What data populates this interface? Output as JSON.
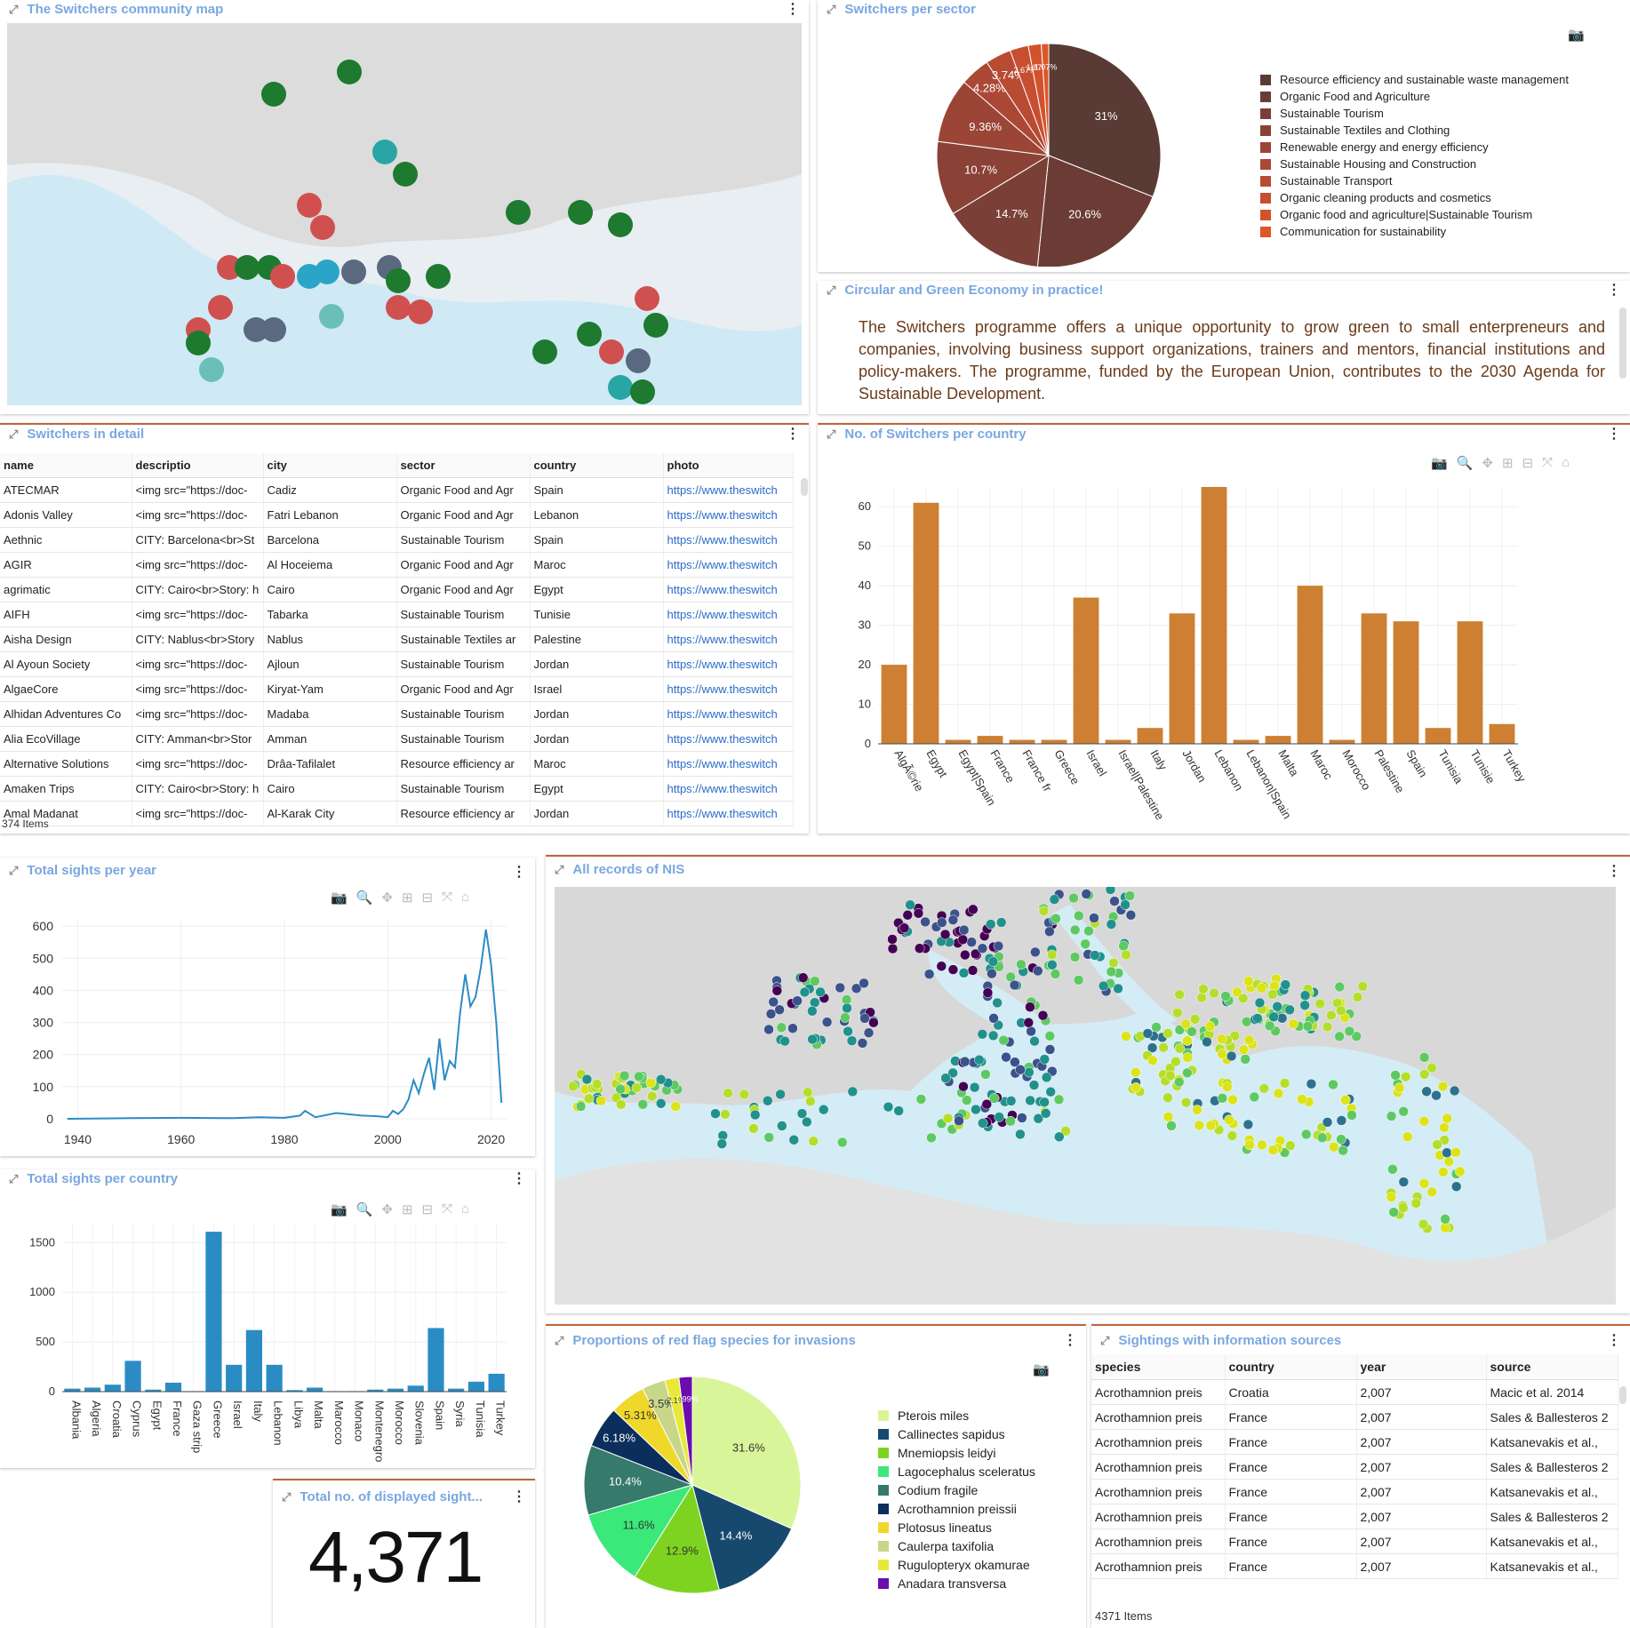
{
  "community_map": {
    "title": "The Switchers community map"
  },
  "sector_pie": {
    "title": "Switchers per sector",
    "slice_labels": [
      "31%",
      "20.6%",
      "14.7%",
      "10.7%",
      "9.36%",
      "4.28%",
      "3.74%",
      "2.67%",
      "1.87%",
      "1.07%"
    ],
    "legend": [
      "Resource efficiency and sustainable waste management",
      "Organic Food and Agriculture",
      "Sustainable Tourism",
      "Sustainable Textiles and Clothing",
      "Renewable energy and energy efficiency",
      "Sustainable Housing and Construction",
      "Sustainable Transport",
      "Organic cleaning products and cosmetics",
      "Organic food and agriculture|Sustainable Tourism",
      "Communication for sustainability"
    ],
    "colors": [
      "#5a3a34",
      "#6b3c35",
      "#7a3f36",
      "#8a4236",
      "#9a4536",
      "#aa4835",
      "#b94b33",
      "#c74e30",
      "#d3522c",
      "#de5628"
    ]
  },
  "circular_text": {
    "title": "Circular and Green Economy in practice!",
    "body": "The Switchers programme offers a unique opportunity to grow green to small enterpreneurs and companies, involving business support organizations, trainers and mentors, financial institutions and policy-makers. The programme, funded by the European Union, contributes to the 2030 Agenda for Sustainable Development."
  },
  "switchers_detail": {
    "title": "Switchers in detail",
    "columns": [
      "name",
      "descriptio",
      "city",
      "sector",
      "country",
      "photo"
    ],
    "rows": [
      [
        "ATECMAR",
        "<img src=\"https://doc-",
        "Cadiz",
        "Organic Food and Agr",
        "Spain",
        "https://www.theswitch"
      ],
      [
        "Adonis Valley",
        "<img src=\"https://doc-",
        "Fatri Lebanon",
        "Organic Food and Agr",
        "Lebanon",
        "https://www.theswitch"
      ],
      [
        "Aethnic",
        "CITY: Barcelona<br>St",
        "Barcelona",
        "Sustainable Tourism",
        "Spain",
        "https://www.theswitch"
      ],
      [
        "AGIR",
        "<img src=\"https://doc-",
        "Al Hoceiema",
        "Organic Food and Agr",
        "Maroc",
        "https://www.theswitch"
      ],
      [
        "agrimatic",
        "CITY: Cairo<br>Story: h",
        "Cairo",
        "Organic Food and Agr",
        "Egypt",
        "https://www.theswitch"
      ],
      [
        "AIFH",
        "<img src=\"https://doc-",
        "Tabarka",
        "Sustainable Tourism",
        "Tunisie",
        "https://www.theswitch"
      ],
      [
        "Aisha Design",
        "CITY: Nablus<br>Story",
        "Nablus",
        "Sustainable Textiles ar",
        "Palestine",
        "https://www.theswitch"
      ],
      [
        "Al Ayoun Society",
        "<img src=\"https://doc-",
        "Ajloun",
        "Sustainable Tourism",
        "Jordan",
        "https://www.theswitch"
      ],
      [
        "AlgaeCore",
        "<img src=\"https://doc-",
        "Kiryat-Yam",
        "Organic Food and Agr",
        "Israel",
        "https://www.theswitch"
      ],
      [
        "Alhidan Adventures Co",
        "<img src=\"https://doc-",
        "Madaba",
        "Sustainable Tourism",
        "Jordan",
        "https://www.theswitch"
      ],
      [
        "Alia EcoVillage",
        "CITY: Amman<br>Stor",
        "Amman",
        "Sustainable Tourism",
        "Jordan",
        "https://www.theswitch"
      ],
      [
        "Alternative Solutions",
        "<img src=\"https://doc-",
        "Drâa-Tafilalet",
        "Resource efficiency ar",
        "Maroc",
        "https://www.theswitch"
      ],
      [
        "Amaken Trips",
        "CITY: Cairo<br>Story: h",
        "Cairo",
        "Sustainable Tourism",
        "Egypt",
        "https://www.theswitch"
      ],
      [
        "Amal Madanat",
        "<img src=\"https://doc-",
        "Al-Karak City",
        "Resource efficiency ar",
        "Jordan",
        "https://www.theswitch"
      ]
    ],
    "item_count": "374 Items"
  },
  "country_bar": {
    "title": "No. of Switchers per country",
    "accent": "#cd7f32"
  },
  "sights_year": {
    "title": "Total sights per year"
  },
  "sights_country": {
    "title": "Total sights per country"
  },
  "nis_map": {
    "title": "All records of NIS"
  },
  "red_flag_pie": {
    "title": "Proportions of red flag species for invasions",
    "slice_labels": [
      "31.6%",
      "14.4%",
      "12.9%",
      "11.6%",
      "10.4%",
      "6.18%",
      "5.31%",
      "3.5%",
      "2.1%",
      "1.99%"
    ],
    "legend": [
      "Pterois miles",
      "Callinectes sapidus",
      "Mnemiopsis leidyi",
      "Lagocephalus sceleratus",
      "Codium fragile",
      "Acrothamnion preissii",
      "Plotosus lineatus",
      "Caulerpa taxifolia",
      "Rugulopteryx okamurae",
      "Anadara transversa"
    ],
    "colors": [
      "#d9f59a",
      "#17496e",
      "#7ed321",
      "#3be87a",
      "#357a6c",
      "#0b2e5c",
      "#f0d82a",
      "#c8d68a",
      "#e8e83a",
      "#6a0dad"
    ]
  },
  "sightings_table": {
    "title": "Sightings with information sources",
    "columns": [
      "species",
      "country",
      "year",
      "source"
    ],
    "rows": [
      [
        "Acrothamnion preis",
        "Croatia",
        "2,007",
        "Macic et al. 2014"
      ],
      [
        "Acrothamnion preis",
        "France",
        "2,007",
        "Sales & Ballesteros 2"
      ],
      [
        "Acrothamnion preis",
        "France",
        "2,007",
        "Katsanevakis et al.,"
      ],
      [
        "Acrothamnion preis",
        "France",
        "2,007",
        "Sales & Ballesteros 2"
      ],
      [
        "Acrothamnion preis",
        "France",
        "2,007",
        "Katsanevakis et al.,"
      ],
      [
        "Acrothamnion preis",
        "France",
        "2,007",
        "Sales & Ballesteros 2"
      ],
      [
        "Acrothamnion preis",
        "France",
        "2,007",
        "Katsanevakis et al.,"
      ],
      [
        "Acrothamnion preis",
        "France",
        "2,007",
        "Katsanevakis et al.,"
      ]
    ],
    "item_count": "4371 Items"
  },
  "total_sightings": {
    "title": "Total no. of displayed sight...",
    "value": "4,371"
  },
  "chart_data": [
    {
      "type": "pie",
      "title": "Switchers per sector",
      "categories": [
        "Resource efficiency and sustainable waste management",
        "Organic Food and Agriculture",
        "Sustainable Tourism",
        "Sustainable Textiles and Clothing",
        "Renewable energy and energy efficiency",
        "Sustainable Housing and Construction",
        "Sustainable Transport",
        "Organic cleaning products and cosmetics",
        "Organic food and agriculture|Sustainable Tourism",
        "Communication for sustainability"
      ],
      "values": [
        31,
        20.6,
        14.7,
        10.7,
        9.36,
        4.28,
        3.74,
        2.67,
        1.87,
        1.07
      ]
    },
    {
      "type": "bar",
      "title": "No. of Switchers per country",
      "categories": [
        "AlgÃ©rie",
        "Egypt",
        "Egypt|Spain",
        "France",
        "France fr",
        "Greece",
        "Israel",
        "Israel|Palestine",
        "Italy",
        "Jordan",
        "Lebanon",
        "Lebanon|Spain",
        "Malta",
        "Maroc",
        "Morocco",
        "Palestine",
        "Spain",
        "Tunisia",
        "Tunisie",
        "Turkey"
      ],
      "values": [
        20,
        61,
        1,
        2,
        1,
        1,
        37,
        1,
        4,
        33,
        65,
        1,
        2,
        40,
        1,
        33,
        31,
        4,
        31,
        5
      ],
      "ylim": [
        0,
        65
      ],
      "yticks": [
        0,
        10,
        20,
        30,
        40,
        50,
        60
      ]
    },
    {
      "type": "line",
      "title": "Total sights per year",
      "x": [
        1938,
        1950,
        1960,
        1970,
        1975,
        1980,
        1983,
        1984,
        1986,
        1990,
        1995,
        1998,
        2000,
        2001,
        2002,
        2003,
        2004,
        2005,
        2006,
        2007,
        2008,
        2009,
        2010,
        2011,
        2012,
        2013,
        2014,
        2015,
        2016,
        2017,
        2018,
        2019,
        2020,
        2021,
        2022
      ],
      "y": [
        0,
        2,
        3,
        2,
        5,
        3,
        10,
        25,
        5,
        18,
        10,
        8,
        5,
        25,
        15,
        30,
        60,
        120,
        80,
        140,
        190,
        90,
        250,
        120,
        180,
        160,
        330,
        450,
        350,
        380,
        470,
        590,
        480,
        300,
        50
      ],
      "xlim": [
        1937,
        2023
      ],
      "xticks": [
        1940,
        1960,
        1980,
        2000,
        2020
      ],
      "ylim": [
        0,
        620
      ],
      "yticks": [
        0,
        100,
        200,
        300,
        400,
        500,
        600
      ]
    },
    {
      "type": "bar",
      "title": "Total sights per country",
      "categories": [
        "Albania",
        "Algeria",
        "Croatia",
        "Cyprus",
        "Egypt",
        "France",
        "Gaza strip",
        "Greece",
        "Israel",
        "Italy",
        "Lebanon",
        "Libya",
        "Malta",
        "Marocco",
        "Monaco",
        "Montenegro",
        "Morocco",
        "Slovenia",
        "Spain",
        "Syria",
        "Tunisia",
        "Turkey"
      ],
      "values": [
        30,
        40,
        70,
        310,
        20,
        90,
        5,
        1610,
        270,
        620,
        270,
        15,
        40,
        5,
        5,
        20,
        30,
        60,
        640,
        30,
        100,
        180
      ],
      "ylim": [
        0,
        1700
      ],
      "yticks": [
        0,
        500,
        1000,
        1500
      ]
    },
    {
      "type": "pie",
      "title": "Proportions of red flag species for invasions",
      "categories": [
        "Pterois miles",
        "Callinectes sapidus",
        "Mnemiopsis leidyi",
        "Lagocephalus sceleratus",
        "Codium fragile",
        "Acrothamnion preissii",
        "Plotosus lineatus",
        "Caulerpa taxifolia",
        "Rugulopteryx okamurae",
        "Anadara transversa"
      ],
      "values": [
        31.6,
        14.4,
        12.9,
        11.6,
        10.4,
        6.18,
        5.31,
        3.5,
        2.1,
        1.99
      ]
    }
  ]
}
